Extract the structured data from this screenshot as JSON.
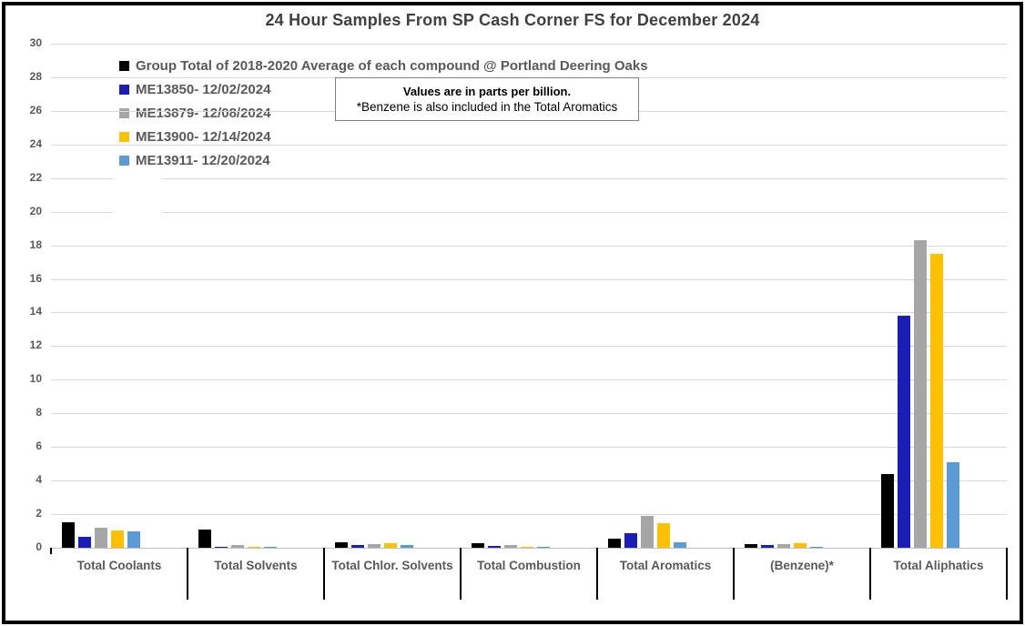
{
  "title": "24 Hour Samples From SP Cash Corner FS for December 2024",
  "note": {
    "line1": "Values are in parts per billion.",
    "line2": "*Benzene is also included in the Total Aromatics"
  },
  "chart_data": {
    "type": "bar",
    "title": "24 Hour Samples From SP Cash Corner FS for December 2024",
    "unit": "parts per billion",
    "categories": [
      "Total Coolants",
      "Total Solvents",
      "Total Chlor. Solvents",
      "Total Combustion",
      "Total Aromatics",
      "(Benzene)*",
      "Total Aliphatics"
    ],
    "series": [
      {
        "name": "Group Total of 2018-2020 Average of each compound @ Portland Deering Oaks",
        "color": "#000000",
        "values": [
          1.5,
          1.1,
          0.35,
          0.25,
          0.55,
          0.2,
          4.4
        ]
      },
      {
        "name": "ME13850- 12/02/2024",
        "color": "#1b1eb4",
        "values": [
          0.65,
          0.07,
          0.15,
          0.1,
          0.85,
          0.15,
          13.8
        ]
      },
      {
        "name": "ME13879- 12/08/2024",
        "color": "#a6a6a6",
        "values": [
          1.2,
          0.18,
          0.2,
          0.15,
          1.9,
          0.22,
          18.3
        ]
      },
      {
        "name": "ME13900- 12/14/2024",
        "color": "#ffc000",
        "values": [
          1.05,
          0.08,
          0.25,
          0.08,
          1.45,
          0.25,
          17.5
        ]
      },
      {
        "name": "ME13911- 12/20/2024",
        "color": "#5b9bd5",
        "values": [
          1.0,
          0.08,
          0.18,
          0.03,
          0.3,
          0.08,
          5.1
        ]
      }
    ],
    "ylim": [
      0,
      30
    ],
    "ytick_step": 2,
    "grid": true,
    "legend_position": "top-left",
    "gridline_color": "#d9d9d9"
  }
}
